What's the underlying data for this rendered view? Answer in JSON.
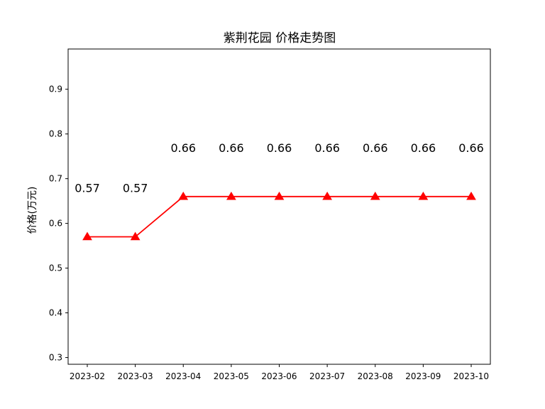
{
  "chart_data": {
    "type": "line",
    "title": "紫荆花园 价格走势图",
    "xlabel": "",
    "ylabel": "价格(万元)",
    "categories": [
      "2023-02",
      "2023-03",
      "2023-04",
      "2023-05",
      "2023-06",
      "2023-07",
      "2023-08",
      "2023-09",
      "2023-10"
    ],
    "series": [
      {
        "values": [
          0.57,
          0.57,
          0.66,
          0.66,
          0.66,
          0.66,
          0.66,
          0.66,
          0.66
        ],
        "data_labels": [
          "0.57",
          "0.57",
          "0.66",
          "0.66",
          "0.66",
          "0.66",
          "0.66",
          "0.66",
          "0.66"
        ],
        "color": "#ff0000",
        "marker": "triangle"
      }
    ],
    "ylim": [
      0.285,
      0.99
    ],
    "yticks": [
      0.3,
      0.4,
      0.5,
      0.6,
      0.7,
      0.8,
      0.9
    ],
    "ytick_labels": [
      "0.3",
      "0.4",
      "0.5",
      "0.6",
      "0.7",
      "0.8",
      "0.9"
    ],
    "grid": false,
    "legend": "none"
  }
}
